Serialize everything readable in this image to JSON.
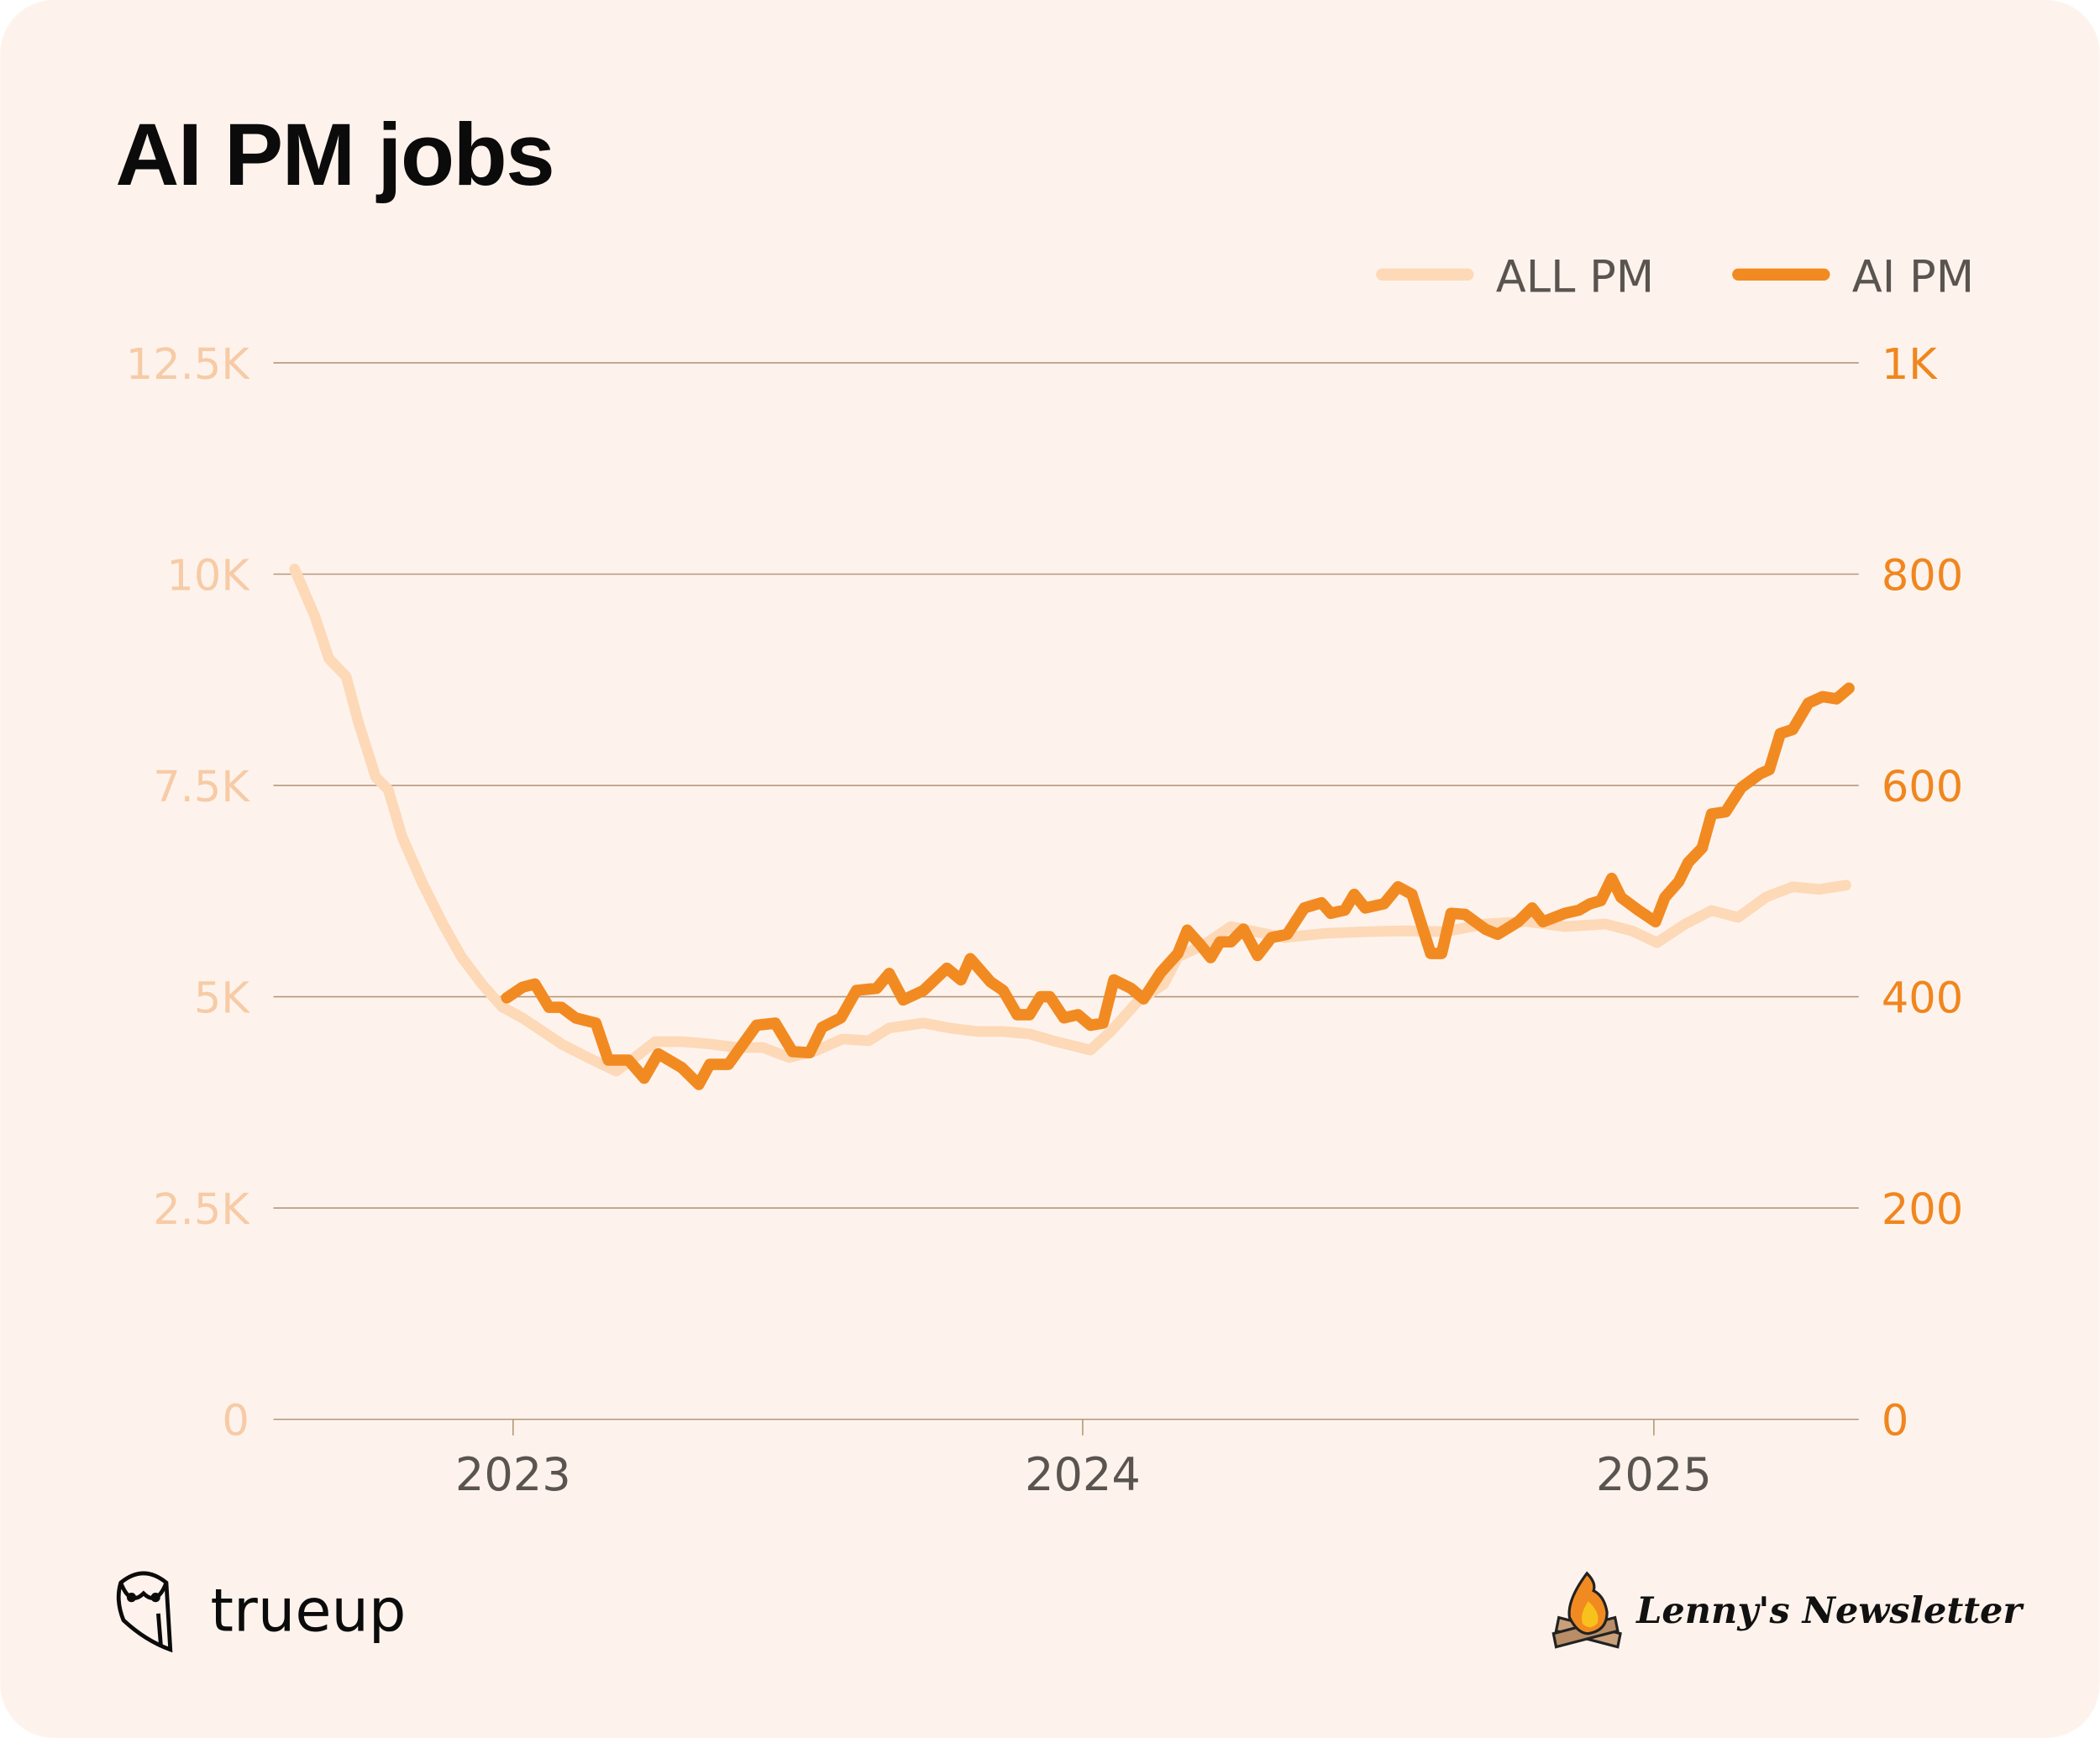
{
  "chart_data": {
    "type": "line",
    "title": "AI PM jobs",
    "xlabel": "",
    "ylabel_left": "",
    "ylabel_right": "",
    "x_ticks": [
      "2023",
      "2024",
      "2025"
    ],
    "x_tick_dates": [
      "2023-01-01",
      "2024-01-01",
      "2025-01-01"
    ],
    "xlim": [
      "2022-07-15",
      "2025-05-31"
    ],
    "y_left": {
      "ticks": [
        "0",
        "2.5K",
        "5K",
        "7.5K",
        "10K",
        "12.5K"
      ],
      "tick_values": [
        0,
        2500,
        5000,
        7500,
        10000,
        12500
      ],
      "ylim": [
        0,
        12500
      ]
    },
    "y_right": {
      "ticks": [
        "0",
        "200",
        "400",
        "600",
        "800",
        "1K"
      ],
      "tick_values": [
        0,
        200,
        400,
        600,
        800,
        1000
      ],
      "ylim": [
        0,
        1000
      ]
    },
    "grid": true,
    "legend_placement": "top-right",
    "series": [
      {
        "name": "ALL PM",
        "axis": "left",
        "color": "#fdd9b8",
        "x": [
          "2022-08-14",
          "2022-08-27",
          "2022-09-05",
          "2022-09-16",
          "2022-09-24",
          "2022-10-05",
          "2022-10-13",
          "2022-10-22",
          "2022-11-04",
          "2022-11-17",
          "2022-11-29",
          "2022-12-12",
          "2022-12-25",
          "2023-01-07",
          "2023-01-20",
          "2023-02-01",
          "2023-02-18",
          "2023-03-08",
          "2023-03-20",
          "2023-04-02",
          "2023-04-19",
          "2023-05-07",
          "2023-05-24",
          "2023-06-10",
          "2023-06-27",
          "2023-07-14",
          "2023-07-31",
          "2023-08-17",
          "2023-08-30",
          "2023-09-21",
          "2023-10-08",
          "2023-10-25",
          "2023-11-11",
          "2023-11-28",
          "2023-12-15",
          "2024-01-06",
          "2024-01-19",
          "2024-02-05",
          "2024-02-22",
          "2024-03-02",
          "2024-03-19",
          "2024-04-05",
          "2024-04-18",
          "2024-05-09",
          "2024-06-04",
          "2024-06-30",
          "2024-07-25",
          "2024-08-20",
          "2024-09-15",
          "2024-10-11",
          "2024-11-05",
          "2024-12-01",
          "2024-12-18",
          "2025-01-03",
          "2025-01-21",
          "2025-02-07",
          "2025-02-24",
          "2025-03-14",
          "2025-03-31",
          "2025-04-17",
          "2025-05-04"
        ],
        "values": [
          10060,
          9500,
          9000,
          8790,
          8240,
          7600,
          7450,
          6890,
          6340,
          5860,
          5470,
          5150,
          4880,
          4750,
          4590,
          4440,
          4280,
          4120,
          4280,
          4470,
          4470,
          4440,
          4400,
          4400,
          4280,
          4360,
          4500,
          4480,
          4630,
          4690,
          4630,
          4590,
          4590,
          4560,
          4470,
          4370,
          4590,
          4940,
          5150,
          5470,
          5620,
          5830,
          5780,
          5700,
          5750,
          5770,
          5780,
          5770,
          5860,
          5890,
          5830,
          5860,
          5780,
          5640,
          5860,
          6020,
          5940,
          6180,
          6300,
          6270,
          6320
        ]
      },
      {
        "name": "AI PM",
        "axis": "right",
        "color": "#f28a22",
        "x": [
          "2022-12-28",
          "2023-01-07",
          "2023-01-15",
          "2023-01-24",
          "2023-02-01",
          "2023-02-10",
          "2023-02-23",
          "2023-03-03",
          "2023-03-16",
          "2023-03-26",
          "2023-04-04",
          "2023-04-19",
          "2023-04-30",
          "2023-05-07",
          "2023-05-19",
          "2023-06-06",
          "2023-06-18",
          "2023-06-29",
          "2023-07-10",
          "2023-07-18",
          "2023-07-30",
          "2023-08-09",
          "2023-08-22",
          "2023-08-30",
          "2023-09-08",
          "2023-09-21",
          "2023-10-06",
          "2023-10-15",
          "2023-10-21",
          "2023-11-03",
          "2023-11-11",
          "2023-11-20",
          "2023-11-28",
          "2023-12-05",
          "2023-12-11",
          "2023-12-20",
          "2023-12-29",
          "2024-01-06",
          "2024-01-14",
          "2024-01-21",
          "2024-02-01",
          "2024-02-09",
          "2024-02-20",
          "2024-03-02",
          "2024-03-08",
          "2024-03-16",
          "2024-03-23",
          "2024-03-29",
          "2024-04-05",
          "2024-04-13",
          "2024-04-22",
          "2024-05-01",
          "2024-05-11",
          "2024-05-22",
          "2024-06-02",
          "2024-06-08",
          "2024-06-17",
          "2024-06-23",
          "2024-06-30",
          "2024-07-12",
          "2024-07-21",
          "2024-07-30",
          "2024-08-11",
          "2024-08-18",
          "2024-08-24",
          "2024-09-02",
          "2024-09-15",
          "2024-09-23",
          "2024-10-06",
          "2024-10-15",
          "2024-10-22",
          "2024-11-05",
          "2024-11-14",
          "2024-11-21",
          "2024-11-28",
          "2024-12-05",
          "2024-12-11",
          "2024-12-22",
          "2025-01-02",
          "2025-01-08",
          "2025-01-17",
          "2025-01-23",
          "2025-02-01",
          "2025-02-07",
          "2025-02-16",
          "2025-02-26",
          "2025-03-10",
          "2025-03-16",
          "2025-03-23",
          "2025-03-31",
          "2025-04-10",
          "2025-04-19",
          "2025-04-28",
          "2025-05-06"
        ],
        "values": [
          399,
          409,
          412,
          390,
          390,
          380,
          375,
          340,
          340,
          323,
          346,
          333,
          317,
          336,
          336,
          373,
          375,
          348,
          347,
          371,
          380,
          406,
          408,
          422,
          397,
          406,
          427,
          416,
          436,
          414,
          406,
          383,
          383,
          400,
          400,
          380,
          383,
          373,
          375,
          416,
          408,
          398,
          423,
          441,
          463,
          450,
          437,
          452,
          452,
          464,
          439,
          456,
          459,
          484,
          489,
          479,
          482,
          497,
          484,
          488,
          504,
          497,
          441,
          441,
          479,
          478,
          464,
          459,
          471,
          484,
          471,
          479,
          482,
          488,
          491,
          512,
          494,
          482,
          471,
          494,
          509,
          527,
          541,
          573,
          575,
          598,
          611,
          615,
          649,
          653,
          678,
          684,
          682,
          692
        ]
      }
    ]
  },
  "footer": {
    "left_brand": "trueup",
    "right_brand": "Lenny's Newsletter"
  },
  "colors": {
    "background": "#fef3ec",
    "gridline": "#b5977c",
    "left_axis_text": "#f6cba6",
    "right_axis_text": "#f0861e",
    "x_axis_text": "#5a5450"
  }
}
